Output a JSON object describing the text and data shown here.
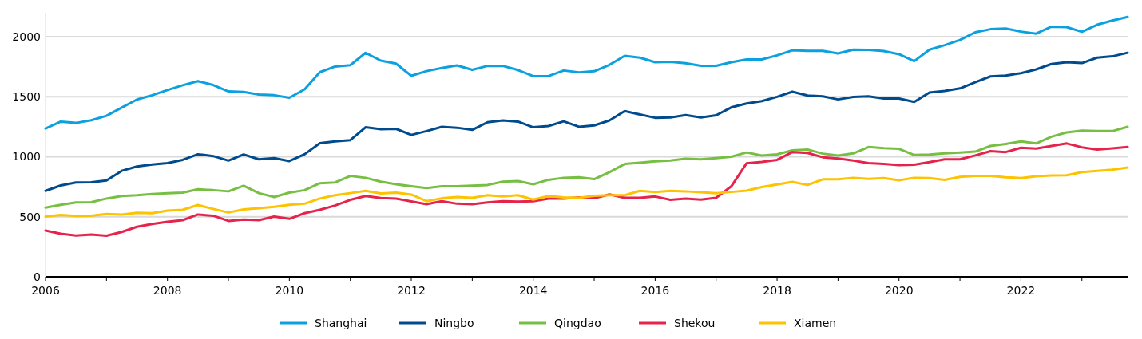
{
  "chart_data": {
    "type": "line",
    "x": [
      2006,
      2006.25,
      2006.5,
      2006.75,
      2007,
      2007.25,
      2007.5,
      2007.75,
      2008,
      2008.25,
      2008.5,
      2008.75,
      2009,
      2009.25,
      2009.5,
      2009.75,
      2010,
      2010.25,
      2010.5,
      2010.75,
      2011,
      2011.25,
      2011.5,
      2011.75,
      2012,
      2012.25,
      2012.5,
      2012.75,
      2013,
      2013.25,
      2013.5,
      2013.75,
      2014,
      2014.25,
      2014.5,
      2014.75,
      2015,
      2015.25,
      2015.5,
      2015.75,
      2016,
      2016.25,
      2016.5,
      2016.75,
      2017,
      2017.25,
      2017.5,
      2017.75,
      2018,
      2018.25,
      2018.5,
      2018.75,
      2019,
      2019.25,
      2019.5,
      2019.75,
      2020,
      2020.25,
      2020.5,
      2020.75,
      2021,
      2021.25,
      2021.5,
      2021.75,
      2022,
      2022.25,
      2022.5,
      2022.75,
      2023,
      2023.25,
      2023.5,
      2023.75
    ],
    "series": [
      {
        "name": "Shanghai",
        "color": "#0ba0df",
        "values": [
          1235,
          1293,
          1282,
          1304,
          1342,
          1410,
          1477,
          1513,
          1556,
          1596,
          1630,
          1598,
          1545,
          1541,
          1519,
          1513,
          1492,
          1562,
          1705,
          1752,
          1763,
          1866,
          1801,
          1776,
          1675,
          1714,
          1740,
          1761,
          1725,
          1757,
          1757,
          1723,
          1672,
          1672,
          1719,
          1704,
          1713,
          1766,
          1841,
          1826,
          1788,
          1792,
          1779,
          1758,
          1758,
          1788,
          1811,
          1811,
          1845,
          1887,
          1882,
          1882,
          1861,
          1893,
          1891,
          1881,
          1855,
          1797,
          1893,
          1930,
          1973,
          2037,
          2063,
          2069,
          2043,
          2026,
          2084,
          2080,
          2041,
          2100,
          2135,
          2165
        ]
      },
      {
        "name": "Ningbo",
        "color": "#004b8d",
        "values": [
          716,
          761,
          786,
          788,
          803,
          883,
          919,
          936,
          947,
          974,
          1021,
          1006,
          968,
          1019,
          979,
          989,
          964,
          1021,
          1113,
          1128,
          1139,
          1246,
          1229,
          1233,
          1182,
          1214,
          1250,
          1242,
          1224,
          1288,
          1303,
          1293,
          1246,
          1256,
          1295,
          1250,
          1261,
          1303,
          1381,
          1353,
          1325,
          1327,
          1348,
          1327,
          1346,
          1412,
          1444,
          1464,
          1500,
          1542,
          1510,
          1504,
          1478,
          1499,
          1504,
          1485,
          1485,
          1457,
          1536,
          1549,
          1570,
          1621,
          1670,
          1677,
          1696,
          1728,
          1773,
          1788,
          1781,
          1826,
          1837,
          1867
        ]
      },
      {
        "name": "Qingdao",
        "color": "#77bf43",
        "values": [
          577,
          600,
          620,
          622,
          652,
          673,
          680,
          690,
          697,
          701,
          729,
          722,
          712,
          759,
          697,
          665,
          701,
          722,
          780,
          786,
          840,
          825,
          793,
          771,
          754,
          739,
          754,
          754,
          759,
          765,
          793,
          797,
          771,
          808,
          825,
          829,
          814,
          872,
          940,
          951,
          962,
          968,
          983,
          979,
          989,
          1000,
          1036,
          1010,
          1020,
          1053,
          1060,
          1026,
          1011,
          1028,
          1081,
          1071,
          1066,
          1015,
          1019,
          1028,
          1036,
          1043,
          1090,
          1107,
          1128,
          1111,
          1167,
          1203,
          1218,
          1214,
          1214,
          1250
        ]
      },
      {
        "name": "Shekou",
        "color": "#e6244b",
        "values": [
          385,
          359,
          344,
          353,
          342,
          374,
          417,
          440,
          459,
          472,
          519,
          509,
          466,
          477,
          472,
          502,
          483,
          530,
          558,
          594,
          641,
          673,
          656,
          652,
          628,
          605,
          630,
          609,
          605,
          620,
          630,
          626,
          630,
          652,
          652,
          662,
          654,
          686,
          658,
          658,
          669,
          641,
          652,
          643,
          658,
          754,
          946,
          957,
          974,
          1039,
          1032,
          996,
          985,
          968,
          947,
          940,
          930,
          934,
          955,
          979,
          979,
          1011,
          1047,
          1039,
          1075,
          1068,
          1090,
          1111,
          1079,
          1060,
          1070,
          1081
        ]
      },
      {
        "name": "Xiamen",
        "color": "#fdc300",
        "values": [
          502,
          515,
          506,
          509,
          524,
          519,
          534,
          530,
          551,
          558,
          598,
          566,
          536,
          562,
          571,
          583,
          600,
          609,
          652,
          680,
          697,
          716,
          695,
          701,
          685,
          630,
          654,
          665,
          658,
          680,
          669,
          680,
          643,
          673,
          662,
          658,
          675,
          680,
          680,
          716,
          707,
          716,
          712,
          705,
          697,
          707,
          718,
          748,
          770,
          791,
          765,
          812,
          812,
          825,
          816,
          823,
          804,
          825,
          823,
          808,
          833,
          840,
          840,
          829,
          823,
          838,
          844,
          846,
          872,
          883,
          893,
          910
        ]
      }
    ],
    "xlim": [
      2006,
      2023.75
    ],
    "xticks": [
      2006,
      {
        "value": 2007,
        "label": null
      },
      2008,
      {
        "value": 2009,
        "label": null
      },
      2010,
      {
        "value": 2011,
        "label": null
      },
      2012,
      {
        "value": 2013,
        "label": null
      },
      2014,
      {
        "value": 2015,
        "label": null
      },
      2016,
      {
        "value": 2017,
        "label": null
      },
      2018,
      {
        "value": 2019,
        "label": null
      },
      2020,
      {
        "value": 2021,
        "label": null
      },
      2022,
      {
        "value": 2023,
        "label": null
      }
    ],
    "ylim": [
      0,
      2200
    ],
    "yticks": [
      0,
      500,
      1000,
      1500,
      2000
    ],
    "grid": "y",
    "legend": "bottom"
  }
}
